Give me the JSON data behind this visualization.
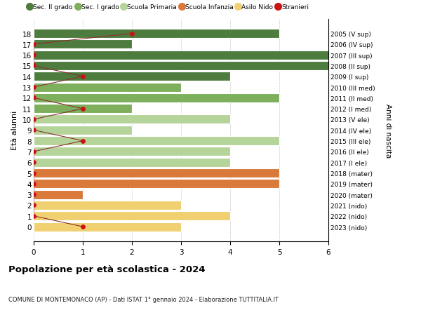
{
  "title": "Popolazione per età scolastica - 2024",
  "subtitle": "COMUNE DI MONTEMONACO (AP) - Dati ISTAT 1° gennaio 2024 - Elaborazione TUTTITALIA.IT",
  "ylabel_left": "Età alunni",
  "ylabel_right": "Anni di nascita",
  "xlim": [
    0,
    6
  ],
  "xticks": [
    0,
    1,
    2,
    3,
    4,
    5,
    6
  ],
  "ages": [
    18,
    17,
    16,
    15,
    14,
    13,
    12,
    11,
    10,
    9,
    8,
    7,
    6,
    5,
    4,
    3,
    2,
    1,
    0
  ],
  "right_labels": [
    "2005 (V sup)",
    "2006 (IV sup)",
    "2007 (III sup)",
    "2008 (II sup)",
    "2009 (I sup)",
    "2010 (III med)",
    "2011 (II med)",
    "2012 (I med)",
    "2013 (V ele)",
    "2014 (IV ele)",
    "2015 (III ele)",
    "2016 (II ele)",
    "2017 (I ele)",
    "2018 (mater)",
    "2019 (mater)",
    "2020 (mater)",
    "2021 (nido)",
    "2022 (nido)",
    "2023 (nido)"
  ],
  "bar_values": [
    5,
    2,
    6,
    6,
    4,
    3,
    5,
    2,
    4,
    2,
    5,
    4,
    4,
    5,
    5,
    1,
    3,
    4,
    3
  ],
  "bar_colors": [
    "#4e7c3f",
    "#4e7c3f",
    "#4e7c3f",
    "#4e7c3f",
    "#4e7c3f",
    "#7daf5c",
    "#7daf5c",
    "#7daf5c",
    "#b5d49a",
    "#b5d49a",
    "#b5d49a",
    "#b5d49a",
    "#b5d49a",
    "#d9793a",
    "#d9793a",
    "#d9793a",
    "#f0d070",
    "#f0d070",
    "#f0d070"
  ],
  "stranieri_values": [
    2,
    0,
    0,
    0,
    1,
    0,
    0,
    1,
    0,
    0,
    1,
    0,
    0,
    0,
    0,
    0,
    0,
    0,
    1
  ],
  "legend_labels": [
    "Sec. II grado",
    "Sec. I grado",
    "Scuola Primaria",
    "Scuola Infanzia",
    "Asilo Nido",
    "Stranieri"
  ],
  "legend_colors": [
    "#4e7c3f",
    "#7daf5c",
    "#b5d49a",
    "#d9793a",
    "#f0d070",
    "#cc1111"
  ],
  "background_color": "#ffffff",
  "grid_color": "#cccccc",
  "bar_height": 0.85,
  "bar_edge_color": "#ffffff",
  "stranieri_line_color": "#8b3030",
  "stranieri_dot_color": "#cc1111"
}
